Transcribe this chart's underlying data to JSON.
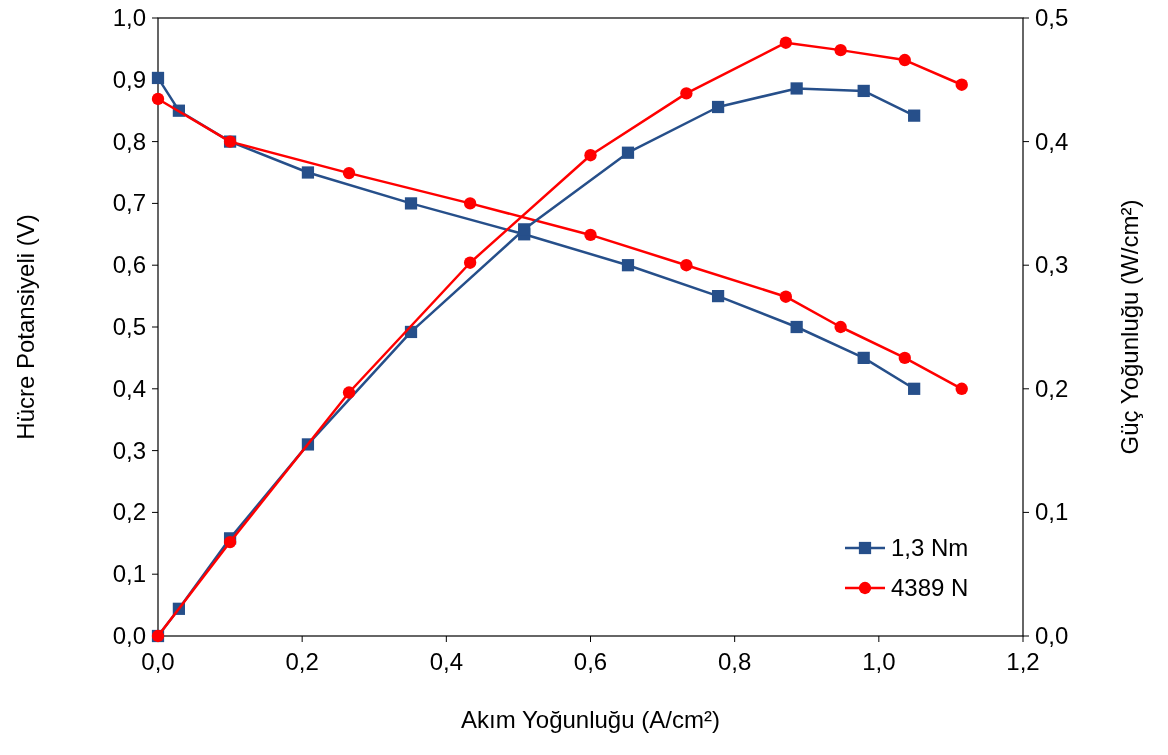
{
  "chart_data": {
    "type": "line",
    "xlabel": "Akım Yoğunluğu (A/cm²)",
    "ylabel": "Hücre Potansiyeli (V)",
    "y2label": "Güç Yoğunluğu (W/cm²)",
    "xlim": [
      0,
      1.2
    ],
    "xticks": [
      {
        "value": 0,
        "label": "0,0"
      },
      {
        "value": 0.2,
        "label": "0,2"
      },
      {
        "value": 0.4,
        "label": "0,4"
      },
      {
        "value": 0.6,
        "label": "0,6"
      },
      {
        "value": 0.8,
        "label": "0,8"
      },
      {
        "value": 1,
        "label": "1,0"
      },
      {
        "value": 1.2,
        "label": "1,2"
      }
    ],
    "ylim": [
      0,
      1
    ],
    "yticks": [
      {
        "value": 0,
        "label": "0,0"
      },
      {
        "value": 0.1,
        "label": "0,1"
      },
      {
        "value": 0.2,
        "label": "0,2"
      },
      {
        "value": 0.3,
        "label": "0,3"
      },
      {
        "value": 0.4,
        "label": "0,4"
      },
      {
        "value": 0.5,
        "label": "0,5"
      },
      {
        "value": 0.6,
        "label": "0,6"
      },
      {
        "value": 0.7,
        "label": "0,7"
      },
      {
        "value": 0.8,
        "label": "0,8"
      },
      {
        "value": 0.9,
        "label": "0,9"
      },
      {
        "value": 1,
        "label": "1,0"
      }
    ],
    "y2lim": [
      0,
      0.5
    ],
    "y2ticks": [
      {
        "value": 0,
        "label": "0,0"
      },
      {
        "value": 0.1,
        "label": "0,1"
      },
      {
        "value": 0.2,
        "label": "0,2"
      },
      {
        "value": 0.3,
        "label": "0,3"
      },
      {
        "value": 0.4,
        "label": "0,4"
      },
      {
        "value": 0.5,
        "label": "0,5"
      }
    ],
    "grid": false,
    "legend": "bottom right",
    "line_style": "solid",
    "series": [
      {
        "name": "1,3 Nm",
        "color": "#264f8a",
        "marker": "square",
        "x": [
          0,
          0.029,
          0.1,
          0.208,
          0.351,
          0.508,
          0.652,
          0.777,
          0.886,
          0.979,
          1.049
        ],
        "values": [
          0.903,
          0.85,
          0.8,
          0.75,
          0.7,
          0.65,
          0.6,
          0.55,
          0.5,
          0.45,
          0.4
        ]
      },
      {
        "name": "4389 N",
        "color": "#ff0000",
        "marker": "circle",
        "x": [
          0,
          0.1,
          0.265,
          0.433,
          0.6,
          0.733,
          0.871,
          0.947,
          1.036,
          1.115
        ],
        "values": [
          0.869,
          0.8,
          0.749,
          0.7,
          0.649,
          0.6,
          0.549,
          0.5,
          0.45,
          0.4
        ]
      },
      {
        "color": "#264f8a",
        "marker": "square",
        "axis": "y2",
        "x": [
          0,
          0.029,
          0.1,
          0.208,
          0.351,
          0.508,
          0.652,
          0.777,
          0.886,
          0.979,
          1.049
        ],
        "values": [
          0,
          0.022,
          0.079,
          0.155,
          0.246,
          0.329,
          0.391,
          0.428,
          0.443,
          0.441,
          0.421
        ]
      },
      {
        "color": "#ff0000",
        "marker": "circle",
        "axis": "y2",
        "x": [
          0,
          0.1,
          0.265,
          0.433,
          0.6,
          0.733,
          0.871,
          0.947,
          1.036,
          1.115
        ],
        "values": [
          0,
          0.076,
          0.197,
          0.302,
          0.389,
          0.439,
          0.48,
          0.474,
          0.466,
          0.446
        ]
      }
    ]
  }
}
